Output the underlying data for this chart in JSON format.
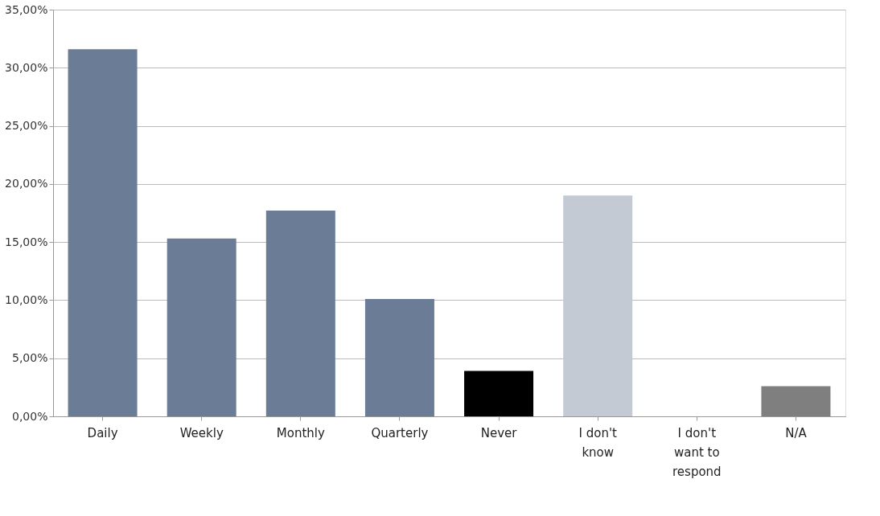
{
  "chart_data": {
    "type": "bar",
    "categories": [
      "Daily",
      "Weekly",
      "Monthly",
      "Quarterly",
      "Never",
      "I don't know",
      "I don't want to respond",
      "N/A"
    ],
    "values": [
      31.6,
      15.3,
      17.7,
      10.1,
      3.9,
      19.0,
      0,
      2.6
    ],
    "colors": [
      "#6b7c96",
      "#6b7c96",
      "#6b7c96",
      "#6b7c96",
      "#000000",
      "#c3cad3",
      "#6b7c96",
      "#7f7f7f"
    ],
    "ylim": [
      0,
      35
    ],
    "yticks": [
      {
        "value": 0,
        "label": "0,00%"
      },
      {
        "value": 5,
        "label": "5,00%"
      },
      {
        "value": 10,
        "label": "10,00%"
      },
      {
        "value": 15,
        "label": "15,00%"
      },
      {
        "value": 20,
        "label": "20,00%"
      },
      {
        "value": 25,
        "label": "25,00%"
      },
      {
        "value": 30,
        "label": "30,00%"
      },
      {
        "value": 35,
        "label": "35,00%"
      }
    ],
    "grid": "y"
  }
}
